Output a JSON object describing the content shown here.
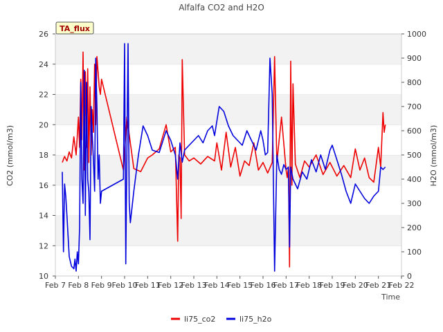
{
  "chart_data": {
    "type": "line",
    "title": "Alfalfa CO2 and H2O",
    "badge": "TA_flux",
    "xlabel": "Time",
    "ylabel_left": "CO2 (mmol/m3)",
    "ylabel_right": "H2O (mmol/m3)",
    "x_ticks": [
      "Feb 7",
      "Feb 8",
      "Feb 9",
      "Feb 10",
      "Feb 11",
      "Feb 12",
      "Feb 13",
      "Feb 14",
      "Feb 15",
      "Feb 16",
      "Feb 17",
      "Feb 18",
      "Feb 19",
      "Feb 20",
      "Feb 21",
      "Feb 22"
    ],
    "xlim": [
      7,
      22
    ],
    "ylim_left": [
      10,
      26
    ],
    "ylim_right": [
      0,
      1000
    ],
    "y_ticks_left": [
      "10",
      "12",
      "14",
      "16",
      "18",
      "20",
      "22",
      "24",
      "26"
    ],
    "y_ticks_right": [
      "0",
      "100",
      "200",
      "300",
      "400",
      "500",
      "600",
      "700",
      "800",
      "900",
      "1000"
    ],
    "grid": "horizontal bands",
    "legend_position": "bottom-center",
    "series": [
      {
        "name": "li75_co2",
        "axis": "left",
        "color": "#ee0000",
        "x": [
          7.3,
          7.4,
          7.5,
          7.6,
          7.7,
          7.8,
          7.9,
          8.0,
          8.05,
          8.1,
          8.15,
          8.2,
          8.25,
          8.3,
          8.35,
          8.4,
          8.45,
          8.5,
          8.55,
          8.6,
          8.65,
          8.7,
          8.75,
          8.8,
          8.85,
          8.9,
          8.95,
          9.0,
          9.95,
          10.1,
          10.4,
          10.7,
          11.0,
          11.2,
          11.5,
          11.8,
          12.0,
          12.2,
          12.3,
          12.35,
          12.4,
          12.45,
          12.5,
          12.6,
          12.8,
          13.0,
          13.3,
          13.6,
          13.9,
          14.0,
          14.2,
          14.4,
          14.6,
          14.8,
          15.0,
          15.2,
          15.4,
          15.6,
          15.8,
          16.0,
          16.2,
          16.4,
          16.5,
          16.6,
          16.8,
          17.0,
          17.05,
          17.1,
          17.15,
          17.2,
          17.25,
          17.3,
          17.4,
          17.6,
          17.8,
          18.0,
          18.3,
          18.6,
          18.9,
          19.2,
          19.5,
          19.8,
          20.0,
          20.2,
          20.4,
          20.6,
          20.8,
          21.0,
          21.1,
          21.2,
          21.25,
          21.3
        ],
        "values": [
          17.5,
          17.9,
          17.6,
          18.2,
          17.8,
          19.2,
          18.0,
          20.5,
          18.5,
          23.0,
          19.0,
          24.8,
          17.0,
          23.5,
          18.5,
          23.7,
          17.5,
          22.5,
          18.0,
          21.0,
          19.5,
          24.0,
          20.0,
          24.5,
          23.5,
          22.5,
          22.0,
          23.0,
          17.0,
          20.5,
          17.1,
          16.9,
          17.8,
          18.0,
          18.4,
          20.0,
          18.2,
          18.5,
          12.3,
          18.0,
          17.8,
          13.8,
          24.3,
          18.0,
          17.6,
          17.8,
          17.4,
          17.9,
          17.6,
          18.8,
          17.0,
          19.5,
          17.2,
          18.5,
          16.6,
          17.6,
          17.3,
          18.8,
          17.0,
          17.5,
          16.8,
          17.5,
          24.5,
          17.5,
          20.5,
          17.0,
          16.5,
          17.2,
          10.6,
          24.2,
          16.0,
          22.7,
          17.4,
          16.5,
          17.6,
          17.2,
          18.0,
          16.7,
          17.5,
          16.6,
          17.3,
          16.5,
          18.4,
          17.0,
          17.8,
          16.5,
          16.2,
          18.5,
          17.2,
          20.8,
          19.5,
          20.0
        ]
      },
      {
        "name": "li75_h2o",
        "axis": "right",
        "color": "#0000dd",
        "x": [
          7.3,
          7.35,
          7.4,
          7.45,
          7.5,
          7.6,
          7.7,
          7.8,
          7.85,
          7.9,
          7.95,
          8.0,
          8.05,
          8.1,
          8.15,
          8.2,
          8.25,
          8.3,
          8.35,
          8.4,
          8.45,
          8.5,
          8.55,
          8.6,
          8.65,
          8.7,
          8.75,
          8.8,
          8.85,
          8.9,
          8.95,
          9.0,
          9.95,
          10.0,
          10.05,
          10.1,
          10.15,
          10.2,
          10.25,
          10.4,
          10.6,
          10.8,
          11.0,
          11.2,
          11.5,
          11.8,
          12.0,
          12.2,
          12.3,
          12.4,
          12.5,
          12.6,
          12.8,
          13.0,
          13.2,
          13.4,
          13.6,
          13.8,
          13.9,
          14.0,
          14.1,
          14.3,
          14.5,
          14.7,
          14.9,
          15.1,
          15.3,
          15.5,
          15.7,
          15.9,
          16.0,
          16.1,
          16.2,
          16.3,
          16.4,
          16.5,
          16.6,
          16.7,
          16.8,
          16.9,
          17.0,
          17.1,
          17.15,
          17.2,
          17.3,
          17.5,
          17.7,
          17.9,
          18.1,
          18.3,
          18.5,
          18.7,
          18.9,
          19.0,
          19.2,
          19.4,
          19.6,
          19.8,
          20.0,
          20.2,
          20.4,
          20.6,
          20.8,
          21.0,
          21.1,
          21.2,
          21.3
        ],
        "values": [
          430,
          100,
          380,
          330,
          250,
          80,
          40,
          30,
          70,
          20,
          100,
          50,
          200,
          800,
          400,
          300,
          850,
          250,
          800,
          400,
          350,
          150,
          700,
          580,
          480,
          350,
          900,
          700,
          400,
          500,
          300,
          350,
          400,
          960,
          50,
          500,
          960,
          300,
          220,
          350,
          500,
          620,
          580,
          520,
          510,
          600,
          560,
          500,
          400,
          550,
          470,
          520,
          540,
          560,
          580,
          550,
          600,
          620,
          580,
          640,
          700,
          680,
          620,
          580,
          560,
          540,
          600,
          560,
          520,
          600,
          560,
          500,
          510,
          900,
          750,
          20,
          500,
          440,
          420,
          460,
          440,
          450,
          120,
          450,
          400,
          360,
          430,
          400,
          480,
          430,
          500,
          440,
          520,
          540,
          480,
          420,
          350,
          300,
          380,
          350,
          320,
          300,
          330,
          350,
          450,
          440,
          450
        ]
      }
    ]
  }
}
